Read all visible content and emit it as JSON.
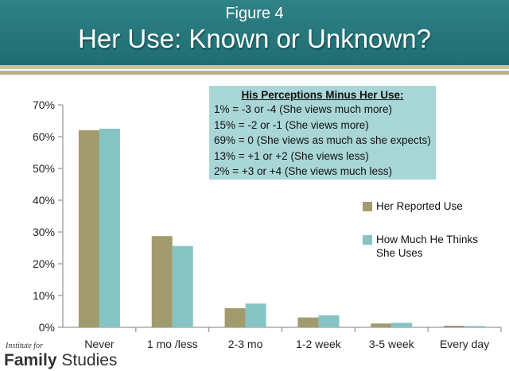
{
  "header": {
    "figure_label": "Figure 4",
    "title": "Her Use: Known or Unknown?"
  },
  "info_box": {
    "title": "His Perceptions Minus Her Use:",
    "lines": [
      "  1% = -3 or -4  (She views much more)",
      "15% = -2 or -1 (She views more)",
      "69% = 0 (She views as much as she expects)",
      "13% = +1 or +2 (She views less)",
      "  2% = +3 or +4 (She views much less)"
    ]
  },
  "logo": {
    "small": "Institute for",
    "word1": "Family",
    "word2": " Studies"
  },
  "colors": {
    "header": "#2f8287",
    "her": "#a19b6e",
    "his": "#86c4c3",
    "info_box": "#a9d6d6"
  },
  "chart_data": {
    "type": "bar",
    "categories": [
      "Never",
      "1 mo /less",
      "2-3 mo",
      "1-2 week",
      "3-5 week",
      "Every day"
    ],
    "series": [
      {
        "name": "Her Reported Use",
        "values": [
          62,
          28.7,
          6,
          3.1,
          1.2,
          0.5
        ]
      },
      {
        "name": "How Much He Thinks She Uses",
        "values": [
          62.5,
          25.6,
          7.5,
          3.8,
          1.4,
          0.4
        ]
      }
    ],
    "ylim": [
      0,
      70
    ],
    "yticks": [
      "0%",
      "10%",
      "20%",
      "30%",
      "40%",
      "50%",
      "60%",
      "70%"
    ],
    "grid": false,
    "legend": "right"
  }
}
